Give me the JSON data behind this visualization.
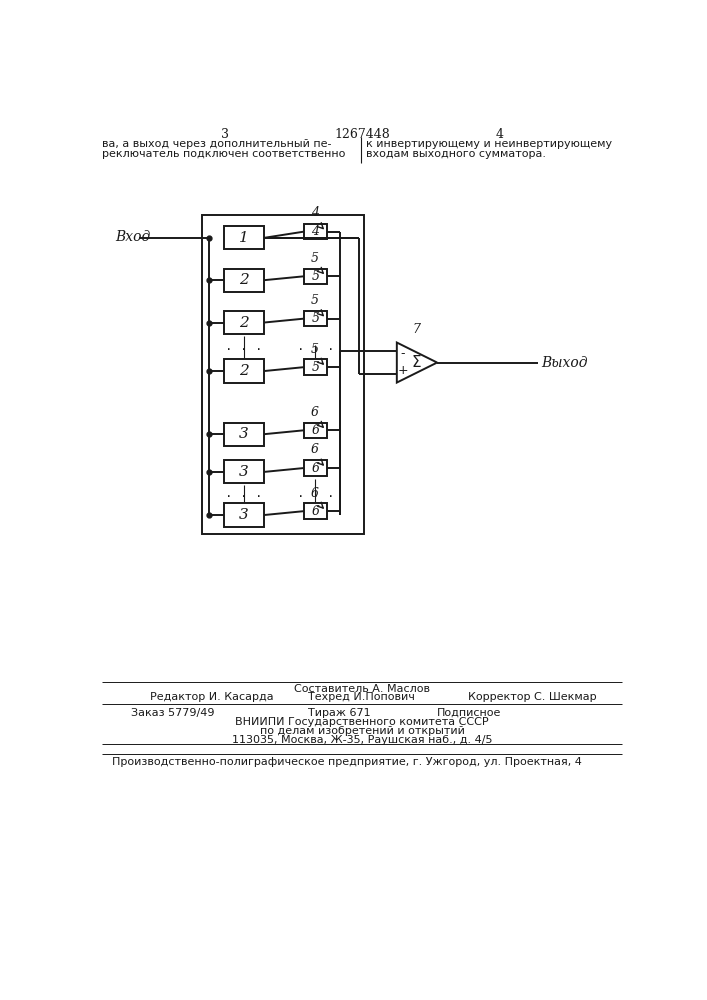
{
  "bg_color": "#ffffff",
  "line_color": "#1a1a1a",
  "text_color": "#1a1a1a",
  "header": {
    "page_left": "3",
    "page_center": "1267448",
    "page_right": "4",
    "body_left1": "ва, а выход через дополнительный пе-",
    "body_left2": "реключатель подключен соответственно",
    "body_right1": "к инвертирующему и неинвертирующему",
    "body_right2": "входам выходного сумматора."
  },
  "footer": {
    "составитель": "Составитель А. Маслов",
    "редактор": "Редактор И. Касарда",
    "техред": "Техред И.Попович",
    "корректор": "Корректор С. Шекмар",
    "заказ": "Заказ 5779/49",
    "тираж": "Тираж 671",
    "подписное": "Подписное",
    "вниипи1": "ВНИИПИ Государственного комитета СССР",
    "вниипи2": "по делам изобретений и открытий",
    "адрес": "113035, Москва, Ж-35, Раушская наб., д. 4/5",
    "полиграф": "Производственно-полиграфическое предприятие, г. Ужгород, ул. Проектная, 4"
  }
}
